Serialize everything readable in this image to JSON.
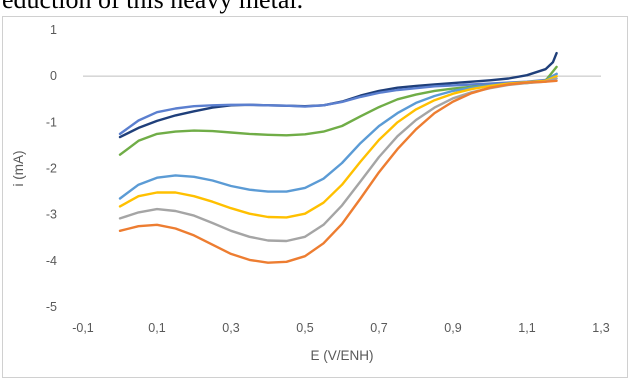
{
  "page": {
    "top_text": "eduction of this heavy metal."
  },
  "chart_data": {
    "type": "line",
    "title": "",
    "xlabel": "E (V/ENH)",
    "ylabel": "i (mA)",
    "xlim": [
      -0.1,
      1.3
    ],
    "ylim": [
      -5,
      1
    ],
    "x_ticks": [
      -0.1,
      0.1,
      0.3,
      0.5,
      0.7,
      0.9,
      1.1,
      1.3
    ],
    "x_tick_labels": [
      "-0,1",
      "0,1",
      "0,3",
      "0,5",
      "0,7",
      "0,9",
      "1,1",
      "1,3"
    ],
    "y_ticks": [
      1,
      0,
      -1,
      -2,
      -3,
      -4,
      -5
    ],
    "y_tick_labels": [
      "1",
      "0",
      "-1",
      "-2",
      "-3",
      "-4",
      "-5"
    ],
    "grid": false,
    "legend": "none",
    "series": [
      {
        "color": "#1f3f7a",
        "x": [
          0.0,
          0.05,
          0.1,
          0.15,
          0.2,
          0.25,
          0.3,
          0.35,
          0.4,
          0.45,
          0.5,
          0.55,
          0.6,
          0.65,
          0.7,
          0.75,
          0.8,
          0.85,
          0.9,
          0.95,
          1.0,
          1.05,
          1.1,
          1.15,
          1.17,
          1.18
        ],
        "y": [
          -1.32,
          -1.12,
          -0.97,
          -0.85,
          -0.76,
          -0.68,
          -0.63,
          -0.62,
          -0.63,
          -0.64,
          -0.65,
          -0.63,
          -0.55,
          -0.42,
          -0.32,
          -0.25,
          -0.21,
          -0.18,
          -0.15,
          -0.12,
          -0.09,
          -0.05,
          0.02,
          0.15,
          0.3,
          0.5
        ]
      },
      {
        "color": "#5b7fcf",
        "x": [
          0.0,
          0.05,
          0.1,
          0.15,
          0.2,
          0.25,
          0.3,
          0.35,
          0.4,
          0.45,
          0.5,
          0.55,
          0.6,
          0.65,
          0.7,
          0.75,
          0.8,
          0.85,
          0.9,
          0.95,
          1.0,
          1.05,
          1.1,
          1.15,
          1.18
        ],
        "y": [
          -1.25,
          -0.96,
          -0.78,
          -0.7,
          -0.65,
          -0.63,
          -0.62,
          -0.62,
          -0.63,
          -0.64,
          -0.66,
          -0.63,
          -0.56,
          -0.45,
          -0.36,
          -0.3,
          -0.26,
          -0.22,
          -0.2,
          -0.18,
          -0.16,
          -0.14,
          -0.12,
          -0.08,
          0.05
        ]
      },
      {
        "color": "#70ad47",
        "x": [
          0.0,
          0.05,
          0.1,
          0.15,
          0.2,
          0.25,
          0.3,
          0.35,
          0.4,
          0.45,
          0.5,
          0.55,
          0.6,
          0.65,
          0.7,
          0.75,
          0.8,
          0.85,
          0.9,
          0.95,
          1.0,
          1.05,
          1.1,
          1.15,
          1.18
        ],
        "y": [
          -1.7,
          -1.4,
          -1.25,
          -1.2,
          -1.18,
          -1.19,
          -1.22,
          -1.25,
          -1.27,
          -1.28,
          -1.26,
          -1.2,
          -1.08,
          -0.87,
          -0.67,
          -0.5,
          -0.4,
          -0.32,
          -0.27,
          -0.23,
          -0.2,
          -0.17,
          -0.15,
          -0.1,
          0.2
        ]
      },
      {
        "color": "#5b9bd5",
        "x": [
          0.0,
          0.05,
          0.1,
          0.15,
          0.2,
          0.25,
          0.3,
          0.35,
          0.4,
          0.45,
          0.5,
          0.55,
          0.6,
          0.65,
          0.7,
          0.75,
          0.8,
          0.85,
          0.9,
          0.95,
          1.0,
          1.05,
          1.1,
          1.15,
          1.18
        ],
        "y": [
          -2.65,
          -2.35,
          -2.2,
          -2.15,
          -2.18,
          -2.26,
          -2.38,
          -2.46,
          -2.5,
          -2.5,
          -2.42,
          -2.22,
          -1.88,
          -1.45,
          -1.08,
          -0.8,
          -0.58,
          -0.43,
          -0.32,
          -0.25,
          -0.2,
          -0.16,
          -0.13,
          -0.1,
          0.05
        ]
      },
      {
        "color": "#ffc000",
        "x": [
          0.0,
          0.05,
          0.1,
          0.15,
          0.2,
          0.25,
          0.3,
          0.35,
          0.4,
          0.45,
          0.5,
          0.55,
          0.6,
          0.65,
          0.7,
          0.75,
          0.8,
          0.85,
          0.9,
          0.95,
          1.0,
          1.05,
          1.1,
          1.15,
          1.18
        ],
        "y": [
          -2.82,
          -2.6,
          -2.52,
          -2.52,
          -2.6,
          -2.72,
          -2.86,
          -2.98,
          -3.05,
          -3.06,
          -2.98,
          -2.74,
          -2.35,
          -1.85,
          -1.38,
          -1.0,
          -0.72,
          -0.52,
          -0.38,
          -0.28,
          -0.21,
          -0.16,
          -0.13,
          -0.1,
          0.0
        ]
      },
      {
        "color": "#a5a5a5",
        "x": [
          0.0,
          0.05,
          0.1,
          0.15,
          0.2,
          0.25,
          0.3,
          0.35,
          0.4,
          0.45,
          0.5,
          0.55,
          0.6,
          0.65,
          0.7,
          0.75,
          0.8,
          0.85,
          0.9,
          0.95,
          1.0,
          1.05,
          1.1,
          1.15,
          1.18
        ],
        "y": [
          -3.08,
          -2.95,
          -2.88,
          -2.92,
          -3.02,
          -3.18,
          -3.35,
          -3.48,
          -3.56,
          -3.57,
          -3.48,
          -3.22,
          -2.8,
          -2.28,
          -1.75,
          -1.3,
          -0.95,
          -0.68,
          -0.48,
          -0.35,
          -0.26,
          -0.19,
          -0.15,
          -0.12,
          -0.05
        ]
      },
      {
        "color": "#ed7d31",
        "x": [
          0.0,
          0.05,
          0.1,
          0.15,
          0.2,
          0.25,
          0.3,
          0.35,
          0.4,
          0.45,
          0.5,
          0.55,
          0.6,
          0.65,
          0.7,
          0.75,
          0.8,
          0.85,
          0.9,
          0.95,
          1.0,
          1.05,
          1.1,
          1.15,
          1.18
        ],
        "y": [
          -3.35,
          -3.25,
          -3.22,
          -3.3,
          -3.45,
          -3.65,
          -3.85,
          -3.98,
          -4.04,
          -4.02,
          -3.9,
          -3.62,
          -3.2,
          -2.65,
          -2.08,
          -1.58,
          -1.15,
          -0.8,
          -0.55,
          -0.37,
          -0.25,
          -0.18,
          -0.14,
          -0.12,
          -0.1
        ]
      }
    ]
  }
}
